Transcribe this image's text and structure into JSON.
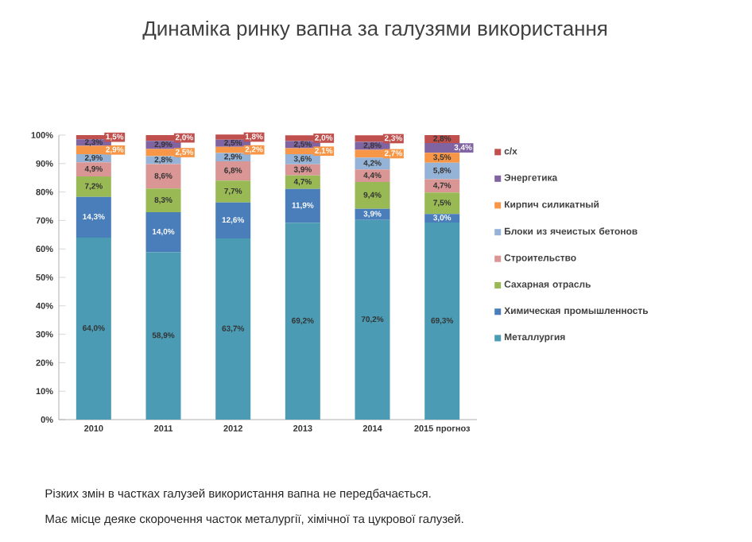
{
  "chart_data": {
    "type": "bar",
    "stacked": true,
    "title": "Динаміка ринку вапна за галузями використання",
    "categories": [
      "2010",
      "2011",
      "2012",
      "2013",
      "2014",
      "2015 прогноз"
    ],
    "ylim": [
      0,
      100
    ],
    "yticks": [
      {
        "value": 0,
        "label": "0%"
      },
      {
        "value": 10,
        "label": "10%"
      },
      {
        "value": 20,
        "label": "20%"
      },
      {
        "value": 30,
        "label": "30%"
      },
      {
        "value": 40,
        "label": "40%"
      },
      {
        "value": 50,
        "label": "50%"
      },
      {
        "value": 60,
        "label": "60%"
      },
      {
        "value": 70,
        "label": "70%"
      },
      {
        "value": 80,
        "label": "80%"
      },
      {
        "value": 90,
        "label": "90%"
      },
      {
        "value": 100,
        "label": "100%"
      }
    ],
    "legend": "right",
    "series": [
      {
        "name": "Металлургия",
        "color": "#4b9bb5",
        "values": [
          64.0,
          58.9,
          63.7,
          69.2,
          70.2,
          69.3
        ],
        "value_labels": [
          "64,0%",
          "58,9%",
          "63,7%",
          "69,2%",
          "70,2%",
          "69,3%"
        ]
      },
      {
        "name": "Химическая промышленность",
        "color": "#4a7ebb",
        "values": [
          14.3,
          14.0,
          12.6,
          11.9,
          3.9,
          3.0
        ],
        "value_labels": [
          "14,3%",
          "14,0%",
          "12,6%",
          "11,9%",
          "3,9%",
          "3,0%"
        ]
      },
      {
        "name": "Сахарная отрасль",
        "color": "#98b954",
        "values": [
          7.2,
          8.3,
          7.7,
          4.7,
          9.4,
          7.5
        ],
        "value_labels": [
          "7,2%",
          "8,3%",
          "7,7%",
          "4,7%",
          "9,4%",
          "7,5%"
        ]
      },
      {
        "name": "Строительство",
        "color": "#d99694",
        "values": [
          4.9,
          8.6,
          6.8,
          3.9,
          4.4,
          4.7
        ],
        "value_labels": [
          "4,9%",
          "8,6%",
          "6,8%",
          "3,9%",
          "4,4%",
          "4,7%"
        ]
      },
      {
        "name": "Блоки из ячеистых бетонов",
        "color": "#95b3d7",
        "values": [
          2.9,
          2.8,
          2.9,
          3.6,
          4.2,
          5.8
        ],
        "value_labels": [
          "2,9%",
          "2,8%",
          "2,9%",
          "3,6%",
          "4,2%",
          "5,8%"
        ]
      },
      {
        "name": "Кирпич силикатный",
        "color": "#f79646",
        "values": [
          2.9,
          2.5,
          2.2,
          2.1,
          2.7,
          3.5
        ],
        "value_labels": [
          "2,9%",
          "2,5%",
          "2,2%",
          "2,1%",
          "2,7%",
          "3,5%"
        ]
      },
      {
        "name": "Энергетика",
        "color": "#8064a2",
        "values": [
          2.3,
          2.9,
          2.5,
          2.5,
          2.8,
          3.4
        ],
        "value_labels": [
          "2,3%",
          "2,9%",
          "2,5%",
          "2,5%",
          "2,8%",
          "3,4%"
        ]
      },
      {
        "name": "с/х",
        "color": "#c0504d",
        "values": [
          1.5,
          2.0,
          1.8,
          2.0,
          2.3,
          2.8
        ],
        "value_labels": [
          "1,5%",
          "2,0%",
          "1,8%",
          "2,0%",
          "2,3%",
          "2,8%"
        ]
      }
    ],
    "annotations": [
      "Різких змін в частках галузей використання вапна не передбачається.",
      "Має місце деяке скорочення часток металургії, хімічної та цукрової галузей."
    ]
  }
}
